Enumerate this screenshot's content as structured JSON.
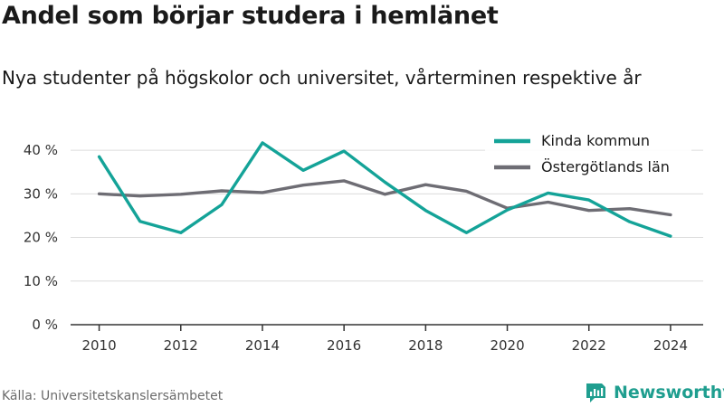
{
  "header": {
    "title": "Andel som börjar studera i hemlänet",
    "subtitle": "Nya studenter på högskolor och universitet, vårterminen respektive år"
  },
  "footer": {
    "source": "Källa: Universitetskanslersämbetet",
    "brand": "Newsworthy",
    "brand_color": "#1f9e8f"
  },
  "chart_data": {
    "type": "line",
    "x": [
      2010,
      2011,
      2012,
      2013,
      2014,
      2015,
      2016,
      2017,
      2018,
      2019,
      2020,
      2021,
      2022,
      2023,
      2024
    ],
    "series": [
      {
        "name": "Kinda kommun",
        "color": "#14a398",
        "values": [
          38.5,
          23.7,
          21.1,
          27.5,
          41.7,
          35.4,
          39.8,
          32.7,
          26.2,
          21.1,
          26.3,
          30.2,
          28.6,
          23.6,
          20.3
        ]
      },
      {
        "name": "Östergötlands län",
        "color": "#6e6d74",
        "values": [
          30.0,
          29.5,
          29.9,
          30.7,
          30.3,
          32.0,
          33.0,
          29.9,
          32.1,
          30.6,
          26.7,
          28.1,
          26.2,
          26.6,
          25.2
        ]
      }
    ],
    "yticks": [
      0,
      10,
      20,
      30,
      40
    ],
    "ytick_labels": [
      "0 %",
      "10 %",
      "20 %",
      "30 %",
      "40 %"
    ],
    "xticks": [
      2010,
      2012,
      2014,
      2016,
      2018,
      2020,
      2022,
      2024
    ],
    "xtick_labels": [
      "2010",
      "2012",
      "2014",
      "2016",
      "2018",
      "2020",
      "2022",
      "2024"
    ],
    "ylim": [
      0,
      45
    ],
    "xlim": [
      2009.3,
      2024.8
    ],
    "grid": "horizontal",
    "legend_position": "top-right"
  }
}
